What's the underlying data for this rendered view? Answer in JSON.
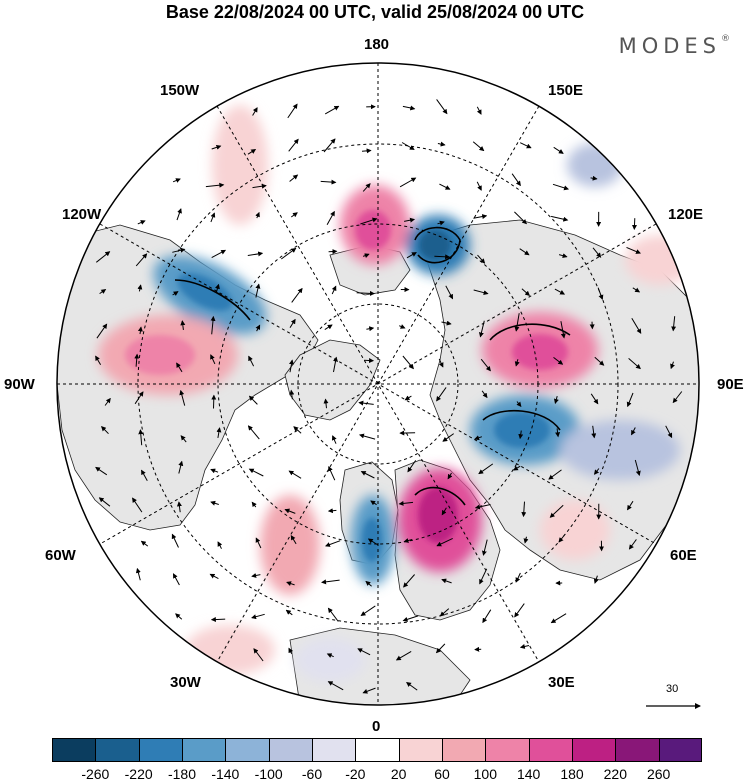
{
  "title": "Base 22/08/2024 00 UTC, valid 25/08/2024 00 UTC",
  "brand": {
    "name": "MODES",
    "mark": "®"
  },
  "longitude_labels": {
    "top": "180",
    "top_left": "150W",
    "top_right": "150E",
    "upper_left": "120W",
    "upper_right": "120E",
    "left": "90W",
    "right": "90E",
    "lower_left": "60W",
    "lower_right": "60E",
    "bottom_left": "30W",
    "bottom_right": "30E",
    "bottom": "0"
  },
  "reference_vector": {
    "value": "30"
  },
  "colorbar": {
    "colors": [
      "#0b3d5f",
      "#1a5f8e",
      "#2f7db5",
      "#5a9cc8",
      "#8db3d8",
      "#b8c3df",
      "#e1e1ef",
      "#ffffff",
      "#f8d3d4",
      "#f2a9b2",
      "#ee83a8",
      "#e0509a",
      "#bd2083",
      "#891778",
      "#591a7c"
    ],
    "labels": [
      "-260",
      "-220",
      "-180",
      "-140",
      "-100",
      "-60",
      "-20",
      "20",
      "60",
      "100",
      "140",
      "180",
      "220",
      "260"
    ]
  },
  "colors": {
    "land": "#e6e6e6",
    "grid": "#000000",
    "coast": "#000000"
  }
}
